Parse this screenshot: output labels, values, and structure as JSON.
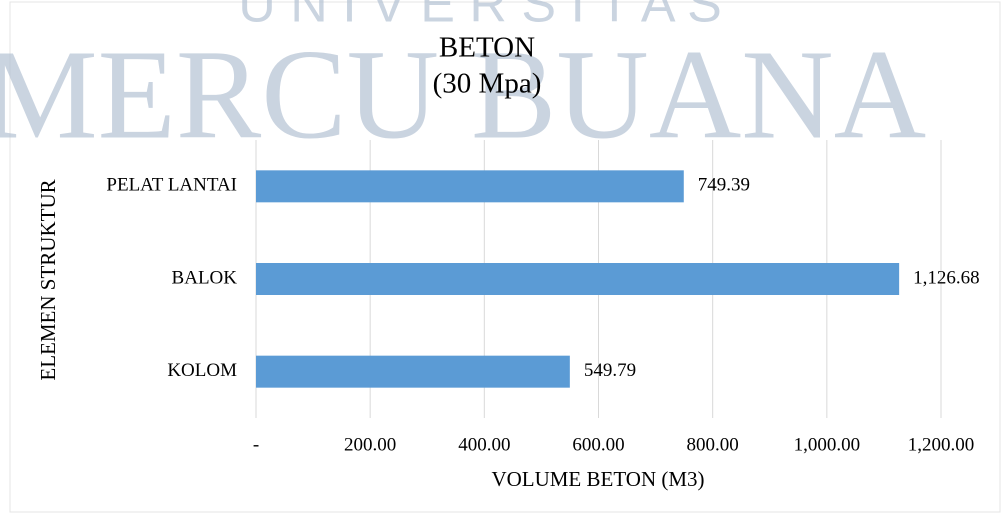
{
  "watermark": {
    "top": "U N I V E R S I T A S",
    "main": "MERCU BUANA"
  },
  "chart_data": {
    "type": "barh",
    "title": "BETON",
    "subtitle": "(30 Mpa)",
    "x_label": "VOLUME BETON (M3)",
    "y_label": "ELEMEN STRUKTUR",
    "categories": [
      "PELAT LANTAI",
      "BALOK",
      "KOLOM"
    ],
    "values": [
      749.39,
      1126.68,
      549.79
    ],
    "value_labels": [
      "749.39",
      "1,126.68",
      "549.79"
    ],
    "color": "#5b9bd5",
    "xlim": [
      0,
      1200
    ],
    "xticks": [
      {
        "value": 0,
        "label": "-"
      },
      {
        "value": 200,
        "label": "200.00"
      },
      {
        "value": 400,
        "label": "400.00"
      },
      {
        "value": 600,
        "label": "600.00"
      },
      {
        "value": 800,
        "label": "800.00"
      },
      {
        "value": 1000,
        "label": "1,000.00"
      },
      {
        "value": 1200,
        "label": "1,200.00"
      }
    ],
    "grid": true
  }
}
